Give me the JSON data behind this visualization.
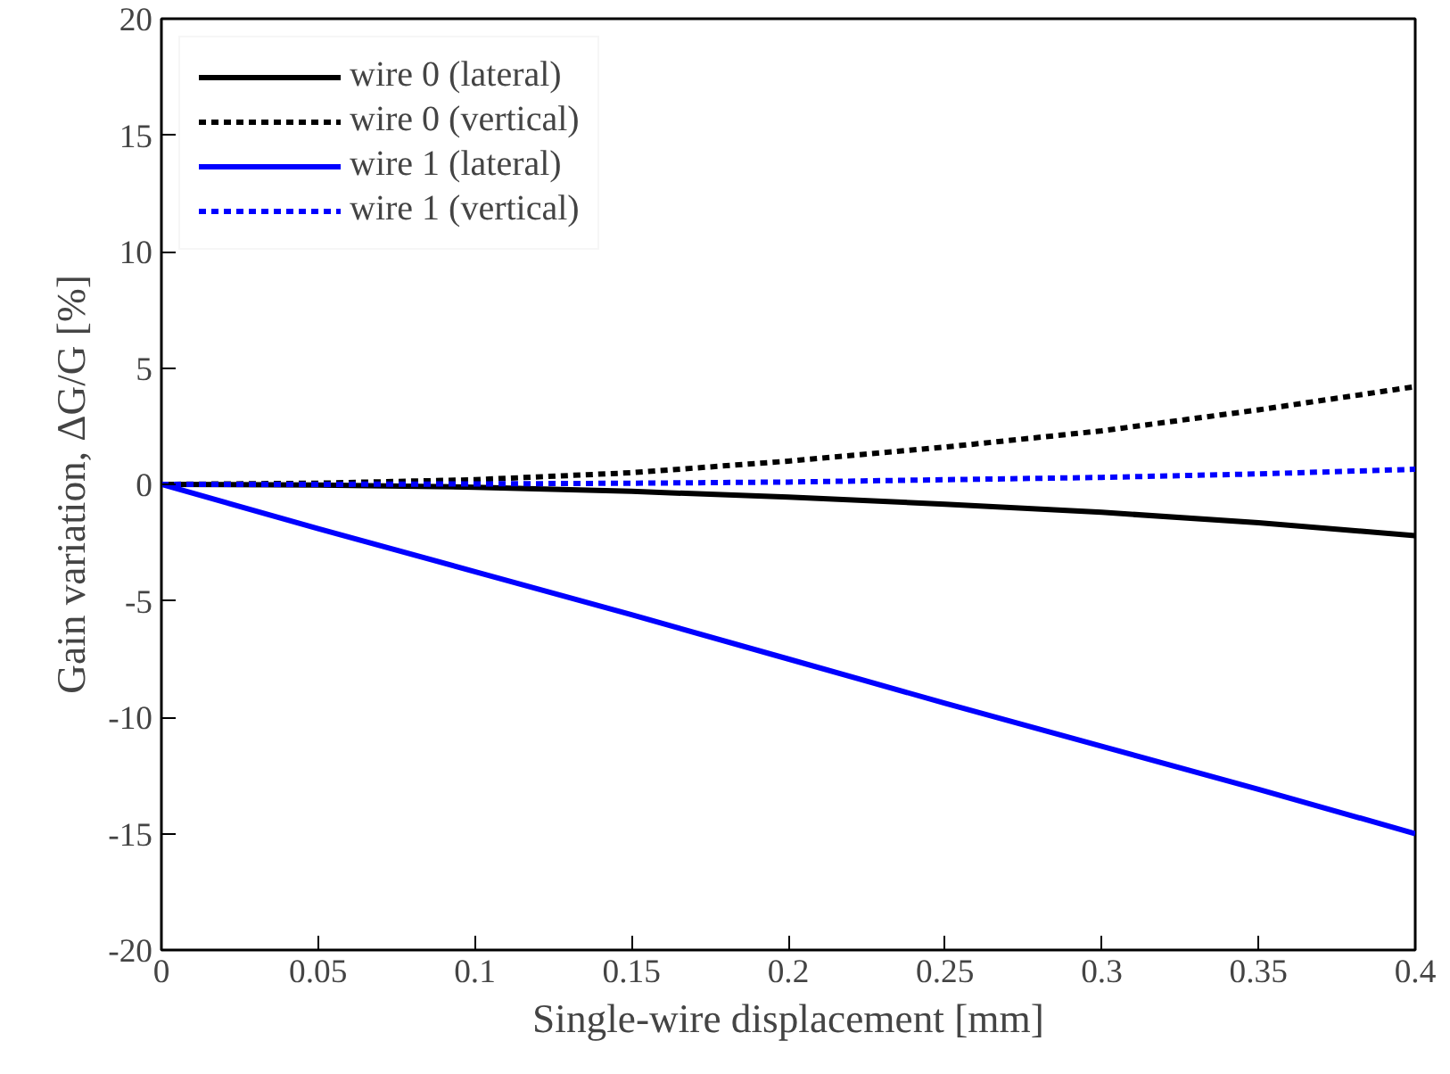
{
  "chart_data": {
    "type": "line",
    "xlabel": "Single-wire displacement [mm]",
    "ylabel": "Gain variation, ΔG/G [%]",
    "x": [
      0,
      0.05,
      0.1,
      0.15,
      0.2,
      0.25,
      0.3,
      0.35,
      0.4
    ],
    "series": [
      {
        "name": "wire 0 (lateral)",
        "color": "#000000",
        "line_style": "solid",
        "values": [
          0,
          -0.03,
          -0.12,
          -0.3,
          -0.55,
          -0.85,
          -1.2,
          -1.65,
          -2.2
        ]
      },
      {
        "name": "wire 0 (vertical)",
        "color": "#000000",
        "line_style": "dotted",
        "values": [
          0,
          0.05,
          0.2,
          0.5,
          1.0,
          1.6,
          2.3,
          3.2,
          4.2
        ]
      },
      {
        "name": "wire 1 (lateral)",
        "color": "#0000ff",
        "line_style": "solid",
        "values": [
          0,
          -1.9,
          -3.75,
          -5.6,
          -7.5,
          -9.4,
          -11.25,
          -13.1,
          -15
        ]
      },
      {
        "name": "wire 1 (vertical)",
        "color": "#0000ff",
        "line_style": "dotted",
        "values": [
          0,
          0,
          0.02,
          0.05,
          0.1,
          0.2,
          0.3,
          0.45,
          0.65
        ]
      }
    ],
    "xlim": [
      0,
      0.4
    ],
    "xticks": [
      0,
      0.05,
      0.1,
      0.15,
      0.2,
      0.25,
      0.3,
      0.35,
      0.4
    ],
    "ylim": [
      -20,
      20
    ],
    "yticks": [
      -20,
      -15,
      -10,
      -5,
      0,
      5,
      10,
      15,
      20
    ],
    "legend": "top left",
    "grid": false,
    "marker": "none"
  }
}
